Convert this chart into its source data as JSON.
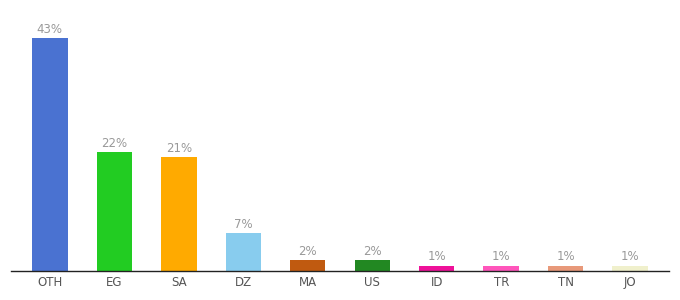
{
  "categories": [
    "OTH",
    "EG",
    "SA",
    "DZ",
    "MA",
    "US",
    "ID",
    "TR",
    "TN",
    "JO"
  ],
  "values": [
    43,
    22,
    21,
    7,
    2,
    2,
    1,
    1,
    1,
    1
  ],
  "bar_colors": [
    "#4a72d1",
    "#22cc22",
    "#ffaa00",
    "#88ccee",
    "#c05a10",
    "#228822",
    "#ee1199",
    "#ff55bb",
    "#e8997a",
    "#f0f0cc"
  ],
  "labels": [
    "43%",
    "22%",
    "21%",
    "7%",
    "2%",
    "2%",
    "1%",
    "1%",
    "1%",
    "1%"
  ],
  "background_color": "#ffffff",
  "ylim": [
    0,
    48
  ],
  "label_fontsize": 8.5,
  "tick_fontsize": 8.5,
  "label_color": "#999999",
  "tick_color": "#555555",
  "bar_width": 0.55
}
